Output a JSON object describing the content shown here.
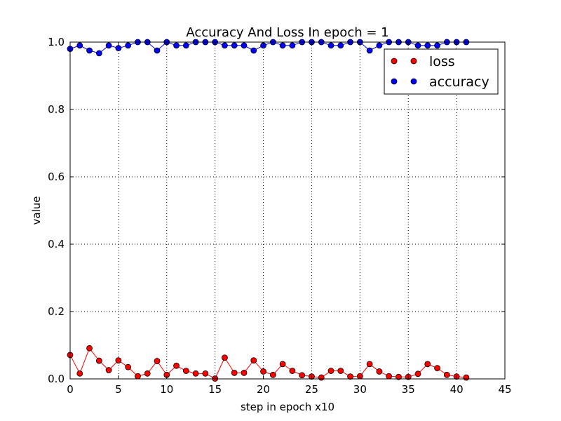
{
  "chart_data": {
    "type": "line",
    "title": "Accuracy And Loss In epoch = 1",
    "xlabel": "step in epoch x10",
    "ylabel": "value",
    "xlim": [
      0,
      45
    ],
    "ylim": [
      0.0,
      1.0
    ],
    "xticks": [
      "0",
      "5",
      "10",
      "15",
      "20",
      "25",
      "30",
      "35",
      "40",
      "45"
    ],
    "yticks": [
      "0.0",
      "0.2",
      "0.4",
      "0.6",
      "0.8",
      "1.0"
    ],
    "grid": true,
    "legend_position": "top-right",
    "x": [
      0,
      1,
      2,
      3,
      4,
      5,
      6,
      7,
      8,
      9,
      10,
      11,
      12,
      13,
      14,
      15,
      16,
      17,
      18,
      19,
      20,
      21,
      22,
      23,
      24,
      25,
      26,
      27,
      28,
      29,
      30,
      31,
      32,
      33,
      34,
      35,
      36,
      37,
      38,
      39,
      40,
      41
    ],
    "series": [
      {
        "name": "loss",
        "color": "#ff0000",
        "values": [
          0.071,
          0.016,
          0.091,
          0.054,
          0.026,
          0.055,
          0.035,
          0.008,
          0.016,
          0.053,
          0.012,
          0.039,
          0.024,
          0.016,
          0.016,
          0.001,
          0.063,
          0.018,
          0.018,
          0.055,
          0.022,
          0.012,
          0.044,
          0.024,
          0.011,
          0.007,
          0.004,
          0.024,
          0.024,
          0.007,
          0.008,
          0.044,
          0.022,
          0.008,
          0.006,
          0.006,
          0.015,
          0.044,
          0.032,
          0.012,
          0.007,
          0.004
        ]
      },
      {
        "name": "accuracy",
        "color": "#0000ff",
        "values": [
          0.98,
          0.99,
          0.975,
          0.967,
          0.99,
          0.982,
          0.99,
          1.0,
          1.0,
          0.975,
          1.0,
          0.99,
          0.99,
          1.0,
          1.0,
          1.0,
          0.99,
          0.99,
          0.99,
          0.975,
          0.99,
          1.0,
          0.99,
          0.99,
          1.0,
          1.0,
          1.0,
          0.99,
          0.99,
          1.0,
          1.0,
          0.975,
          0.99,
          1.0,
          1.0,
          1.0,
          0.99,
          0.99,
          0.99,
          1.0,
          1.0,
          1.0
        ]
      }
    ]
  }
}
